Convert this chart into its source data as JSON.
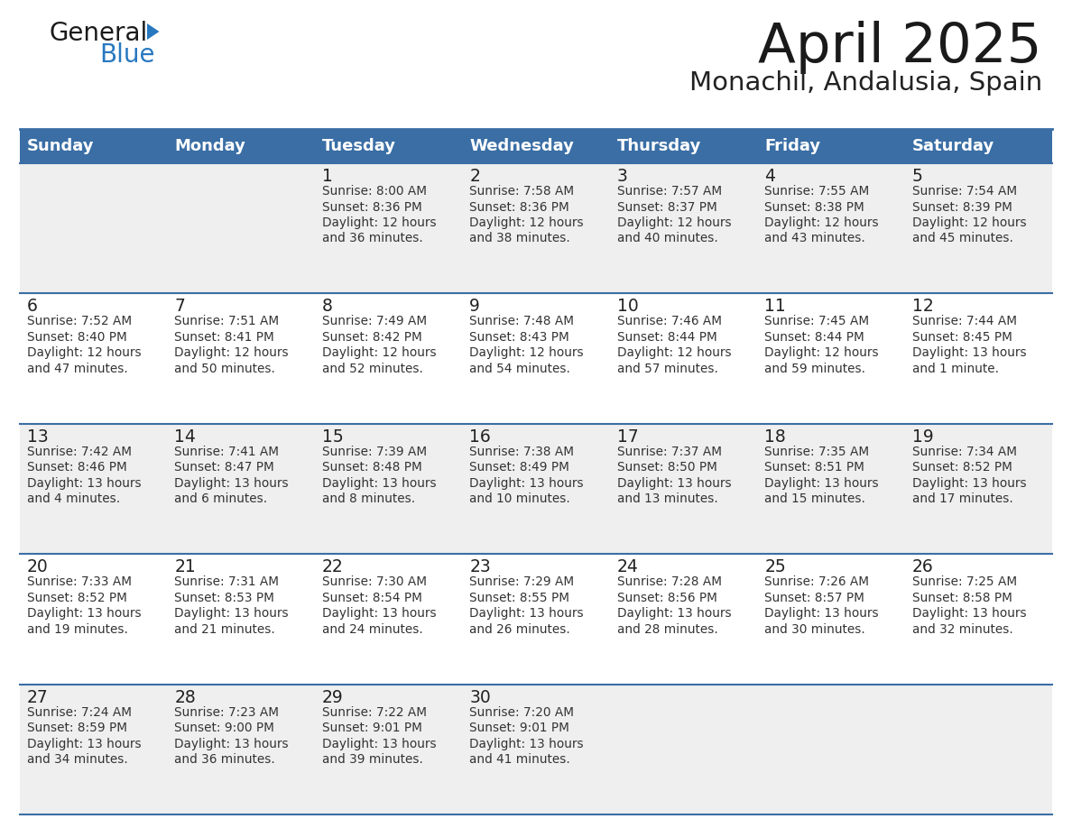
{
  "title": "April 2025",
  "subtitle": "Monachil, Andalusia, Spain",
  "days_of_week": [
    "Sunday",
    "Monday",
    "Tuesday",
    "Wednesday",
    "Thursday",
    "Friday",
    "Saturday"
  ],
  "header_bg": "#3a6ea5",
  "header_text": "#ffffff",
  "row_bg_light": "#efefef",
  "row_bg_white": "#ffffff",
  "cell_border": "#3a6ea5",
  "day_number_color": "#222222",
  "text_color": "#333333",
  "logo_text_color": "#1a1a1a",
  "logo_blue_color": "#2878c0",
  "triangle_color": "#2878c0",
  "calendar": [
    [
      {
        "day": "",
        "sunrise": "",
        "sunset": "",
        "daylight": ""
      },
      {
        "day": "",
        "sunrise": "",
        "sunset": "",
        "daylight": ""
      },
      {
        "day": "1",
        "sunrise": "Sunrise: 8:00 AM",
        "sunset": "Sunset: 8:36 PM",
        "daylight": "Daylight: 12 hours\nand 36 minutes."
      },
      {
        "day": "2",
        "sunrise": "Sunrise: 7:58 AM",
        "sunset": "Sunset: 8:36 PM",
        "daylight": "Daylight: 12 hours\nand 38 minutes."
      },
      {
        "day": "3",
        "sunrise": "Sunrise: 7:57 AM",
        "sunset": "Sunset: 8:37 PM",
        "daylight": "Daylight: 12 hours\nand 40 minutes."
      },
      {
        "day": "4",
        "sunrise": "Sunrise: 7:55 AM",
        "sunset": "Sunset: 8:38 PM",
        "daylight": "Daylight: 12 hours\nand 43 minutes."
      },
      {
        "day": "5",
        "sunrise": "Sunrise: 7:54 AM",
        "sunset": "Sunset: 8:39 PM",
        "daylight": "Daylight: 12 hours\nand 45 minutes."
      }
    ],
    [
      {
        "day": "6",
        "sunrise": "Sunrise: 7:52 AM",
        "sunset": "Sunset: 8:40 PM",
        "daylight": "Daylight: 12 hours\nand 47 minutes."
      },
      {
        "day": "7",
        "sunrise": "Sunrise: 7:51 AM",
        "sunset": "Sunset: 8:41 PM",
        "daylight": "Daylight: 12 hours\nand 50 minutes."
      },
      {
        "day": "8",
        "sunrise": "Sunrise: 7:49 AM",
        "sunset": "Sunset: 8:42 PM",
        "daylight": "Daylight: 12 hours\nand 52 minutes."
      },
      {
        "day": "9",
        "sunrise": "Sunrise: 7:48 AM",
        "sunset": "Sunset: 8:43 PM",
        "daylight": "Daylight: 12 hours\nand 54 minutes."
      },
      {
        "day": "10",
        "sunrise": "Sunrise: 7:46 AM",
        "sunset": "Sunset: 8:44 PM",
        "daylight": "Daylight: 12 hours\nand 57 minutes."
      },
      {
        "day": "11",
        "sunrise": "Sunrise: 7:45 AM",
        "sunset": "Sunset: 8:44 PM",
        "daylight": "Daylight: 12 hours\nand 59 minutes."
      },
      {
        "day": "12",
        "sunrise": "Sunrise: 7:44 AM",
        "sunset": "Sunset: 8:45 PM",
        "daylight": "Daylight: 13 hours\nand 1 minute."
      }
    ],
    [
      {
        "day": "13",
        "sunrise": "Sunrise: 7:42 AM",
        "sunset": "Sunset: 8:46 PM",
        "daylight": "Daylight: 13 hours\nand 4 minutes."
      },
      {
        "day": "14",
        "sunrise": "Sunrise: 7:41 AM",
        "sunset": "Sunset: 8:47 PM",
        "daylight": "Daylight: 13 hours\nand 6 minutes."
      },
      {
        "day": "15",
        "sunrise": "Sunrise: 7:39 AM",
        "sunset": "Sunset: 8:48 PM",
        "daylight": "Daylight: 13 hours\nand 8 minutes."
      },
      {
        "day": "16",
        "sunrise": "Sunrise: 7:38 AM",
        "sunset": "Sunset: 8:49 PM",
        "daylight": "Daylight: 13 hours\nand 10 minutes."
      },
      {
        "day": "17",
        "sunrise": "Sunrise: 7:37 AM",
        "sunset": "Sunset: 8:50 PM",
        "daylight": "Daylight: 13 hours\nand 13 minutes."
      },
      {
        "day": "18",
        "sunrise": "Sunrise: 7:35 AM",
        "sunset": "Sunset: 8:51 PM",
        "daylight": "Daylight: 13 hours\nand 15 minutes."
      },
      {
        "day": "19",
        "sunrise": "Sunrise: 7:34 AM",
        "sunset": "Sunset: 8:52 PM",
        "daylight": "Daylight: 13 hours\nand 17 minutes."
      }
    ],
    [
      {
        "day": "20",
        "sunrise": "Sunrise: 7:33 AM",
        "sunset": "Sunset: 8:52 PM",
        "daylight": "Daylight: 13 hours\nand 19 minutes."
      },
      {
        "day": "21",
        "sunrise": "Sunrise: 7:31 AM",
        "sunset": "Sunset: 8:53 PM",
        "daylight": "Daylight: 13 hours\nand 21 minutes."
      },
      {
        "day": "22",
        "sunrise": "Sunrise: 7:30 AM",
        "sunset": "Sunset: 8:54 PM",
        "daylight": "Daylight: 13 hours\nand 24 minutes."
      },
      {
        "day": "23",
        "sunrise": "Sunrise: 7:29 AM",
        "sunset": "Sunset: 8:55 PM",
        "daylight": "Daylight: 13 hours\nand 26 minutes."
      },
      {
        "day": "24",
        "sunrise": "Sunrise: 7:28 AM",
        "sunset": "Sunset: 8:56 PM",
        "daylight": "Daylight: 13 hours\nand 28 minutes."
      },
      {
        "day": "25",
        "sunrise": "Sunrise: 7:26 AM",
        "sunset": "Sunset: 8:57 PM",
        "daylight": "Daylight: 13 hours\nand 30 minutes."
      },
      {
        "day": "26",
        "sunrise": "Sunrise: 7:25 AM",
        "sunset": "Sunset: 8:58 PM",
        "daylight": "Daylight: 13 hours\nand 32 minutes."
      }
    ],
    [
      {
        "day": "27",
        "sunrise": "Sunrise: 7:24 AM",
        "sunset": "Sunset: 8:59 PM",
        "daylight": "Daylight: 13 hours\nand 34 minutes."
      },
      {
        "day": "28",
        "sunrise": "Sunrise: 7:23 AM",
        "sunset": "Sunset: 9:00 PM",
        "daylight": "Daylight: 13 hours\nand 36 minutes."
      },
      {
        "day": "29",
        "sunrise": "Sunrise: 7:22 AM",
        "sunset": "Sunset: 9:01 PM",
        "daylight": "Daylight: 13 hours\nand 39 minutes."
      },
      {
        "day": "30",
        "sunrise": "Sunrise: 7:20 AM",
        "sunset": "Sunset: 9:01 PM",
        "daylight": "Daylight: 13 hours\nand 41 minutes."
      },
      {
        "day": "",
        "sunrise": "",
        "sunset": "",
        "daylight": ""
      },
      {
        "day": "",
        "sunrise": "",
        "sunset": "",
        "daylight": ""
      },
      {
        "day": "",
        "sunrise": "",
        "sunset": "",
        "daylight": ""
      }
    ]
  ]
}
